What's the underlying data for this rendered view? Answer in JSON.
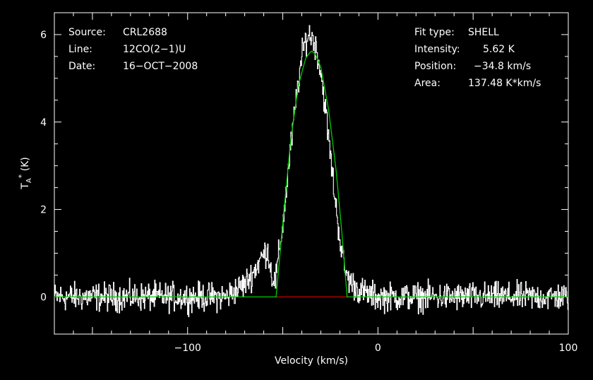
{
  "chart_data": {
    "type": "line",
    "xlabel": "Velocity (km/s)",
    "ylabel": "T_A* (K)",
    "xlim": [
      -170,
      100
    ],
    "ylim": [
      -0.85,
      6.5
    ],
    "xticks": [
      -100,
      0,
      100
    ],
    "yticks": [
      0,
      2,
      4,
      6
    ],
    "xtick_labels": [
      "−100",
      "0",
      "100"
    ],
    "ytick_labels": [
      "0",
      "2",
      "4",
      "6"
    ],
    "grid": false,
    "info_left": [
      {
        "key": "Source:",
        "value": "CRL2688"
      },
      {
        "key": "Line:",
        "value": "12CO(2−1)U"
      },
      {
        "key": "Date:",
        "value": "16−OCT−2008"
      }
    ],
    "info_right": [
      {
        "key": "Fit type:",
        "value": "SHELL"
      },
      {
        "key": "Intensity:",
        "value": "5.62 K"
      },
      {
        "key": "Position:",
        "value": "−34.8 km/s"
      },
      {
        "key": "Area:",
        "value": "137.48 K*km/s"
      }
    ],
    "series": [
      {
        "color": "#ffffff",
        "x": [
          -170,
          -160,
          -150,
          -140,
          -130,
          -120,
          -110,
          -100,
          -90,
          -80,
          -75,
          -70,
          -65,
          -62,
          -58,
          -56,
          -54,
          -50,
          -46,
          -42,
          -40,
          -38,
          -36,
          -34,
          -32,
          -30,
          -28,
          -26,
          -24,
          -22,
          -20,
          -18,
          -16,
          -14,
          -12,
          -10,
          -5,
          0,
          10,
          20,
          30,
          40,
          50,
          60,
          70,
          80,
          90,
          100
        ],
        "y": [
          0,
          0,
          0,
          0,
          0,
          0,
          0,
          0,
          0,
          0,
          0.15,
          0.3,
          0.6,
          0.85,
          1.1,
          0.5,
          0.35,
          1.7,
          3.4,
          4.9,
          5.5,
          5.9,
          6.0,
          5.9,
          5.6,
          5.1,
          4.4,
          3.6,
          2.8,
          2.0,
          1.3,
          0.7,
          0.45,
          0.3,
          0.25,
          0.15,
          0.05,
          0,
          0,
          0,
          0,
          0,
          0,
          0,
          0,
          0,
          0,
          0
        ]
      },
      {
        "color": "#00cc00",
        "x": [
          -170,
          -53.5,
          -50,
          -46,
          -42,
          -38,
          -36,
          -34.8,
          -33,
          -30,
          -26,
          -22,
          -19,
          -16.2,
          100
        ],
        "y": [
          0,
          0,
          1.7,
          3.5,
          4.8,
          5.45,
          5.58,
          5.62,
          5.56,
          5.25,
          4.3,
          2.9,
          1.5,
          0,
          0
        ]
      }
    ],
    "baseline_fit": {
      "color": "#cc0000",
      "x": [
        -53.5,
        -16.2
      ],
      "y": 0
    }
  }
}
